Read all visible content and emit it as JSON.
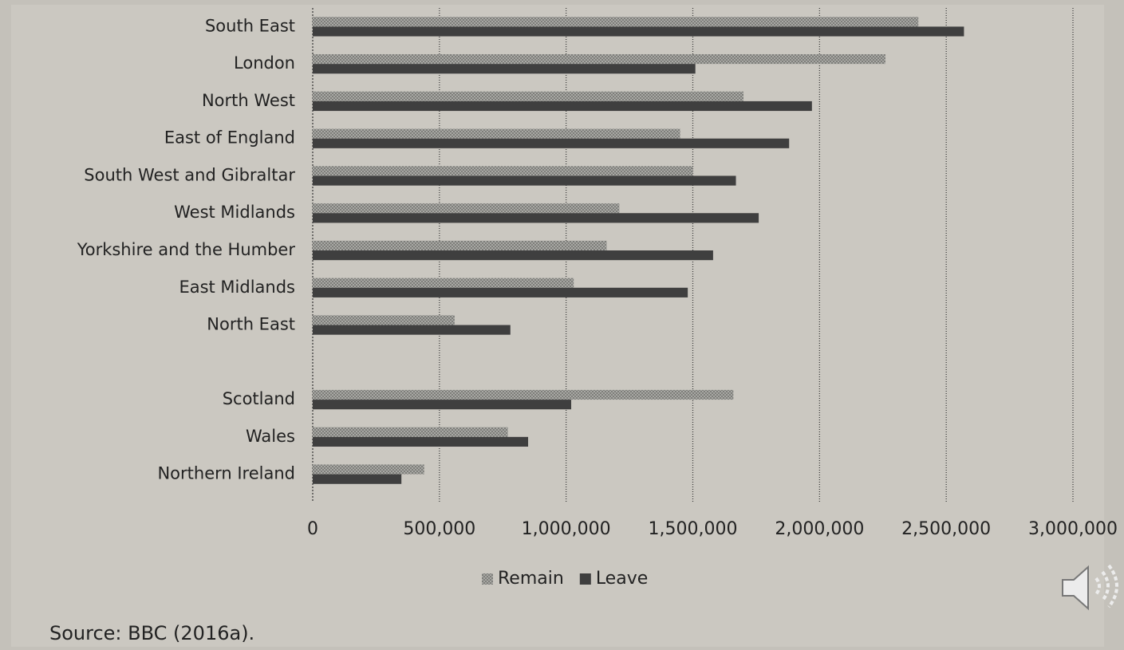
{
  "chart_data": {
    "type": "bar",
    "orientation": "horizontal",
    "categories": [
      "South East",
      "London",
      "North West",
      "East of England",
      "South West and Gibraltar",
      "West Midlands",
      "Yorkshire and the Humber",
      "East Midlands",
      "North East",
      null,
      "Scotland",
      "Wales",
      "Northern Ireland"
    ],
    "series": [
      {
        "name": "Remain",
        "color": "#9a9a96",
        "values": [
          2390000,
          2260000,
          1700000,
          1450000,
          1500000,
          1210000,
          1160000,
          1030000,
          560000,
          null,
          1660000,
          770000,
          440000
        ]
      },
      {
        "name": "Leave",
        "color": "#3f3f3f",
        "values": [
          2570000,
          1510000,
          1970000,
          1880000,
          1670000,
          1760000,
          1580000,
          1480000,
          780000,
          null,
          1020000,
          850000,
          350000
        ]
      }
    ],
    "xlim": [
      0,
      3000000
    ],
    "xticks": [
      0,
      {
        "value": 500000,
        "label": "500,000"
      },
      {
        "value": 1000000,
        "label": "1,000,000"
      },
      {
        "value": 1500000,
        "label": "1,500,000"
      },
      {
        "value": 2000000,
        "label": "2,000,000"
      },
      {
        "value": 2500000,
        "label": "2,500,000"
      },
      {
        "value": 3000000,
        "label": "3,000,000"
      }
    ],
    "grid": true,
    "legend": "bottom"
  },
  "source": "Source: BBC (2016a)."
}
